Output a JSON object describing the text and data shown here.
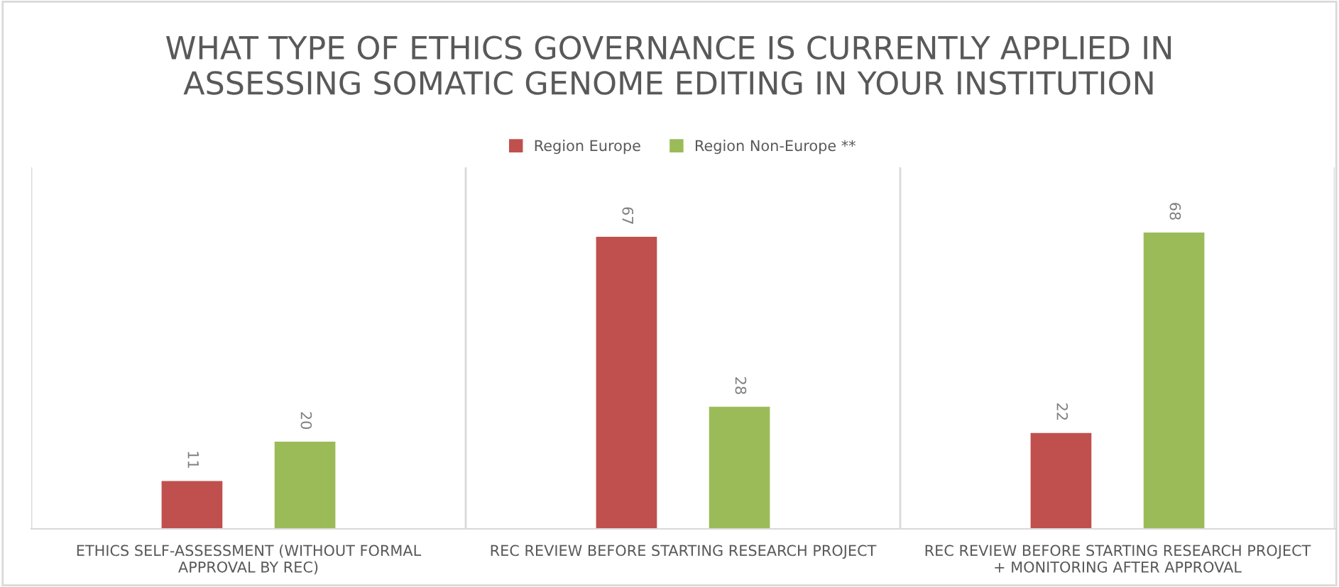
{
  "chart_data": {
    "type": "bar",
    "title": "WHAT TYPE OF ETHICS GOVERNANCE IS CURRENTLY APPLIED IN\nASSESSING SOMATIC GENOME EDITING IN YOUR INSTITUTION",
    "categories": [
      "ETHICS SELF-ASSESSMENT (WITHOUT FORMAL\nAPPROVAL BY REC)",
      "REC REVIEW BEFORE STARTING RESEARCH PROJECT",
      "REC REVIEW BEFORE STARTING RESEARCH PROJECT\n+ MONITORING AFTER APPROVAL"
    ],
    "series": [
      {
        "name": "Region Europe",
        "color": "#c0504d",
        "values": [
          11,
          67,
          22
        ]
      },
      {
        "name": "Region Non-Europe **",
        "color": "#9bbb59",
        "values": [
          20,
          28,
          68
        ]
      }
    ],
    "data_labels": true,
    "legend": "top",
    "grid": false
  }
}
